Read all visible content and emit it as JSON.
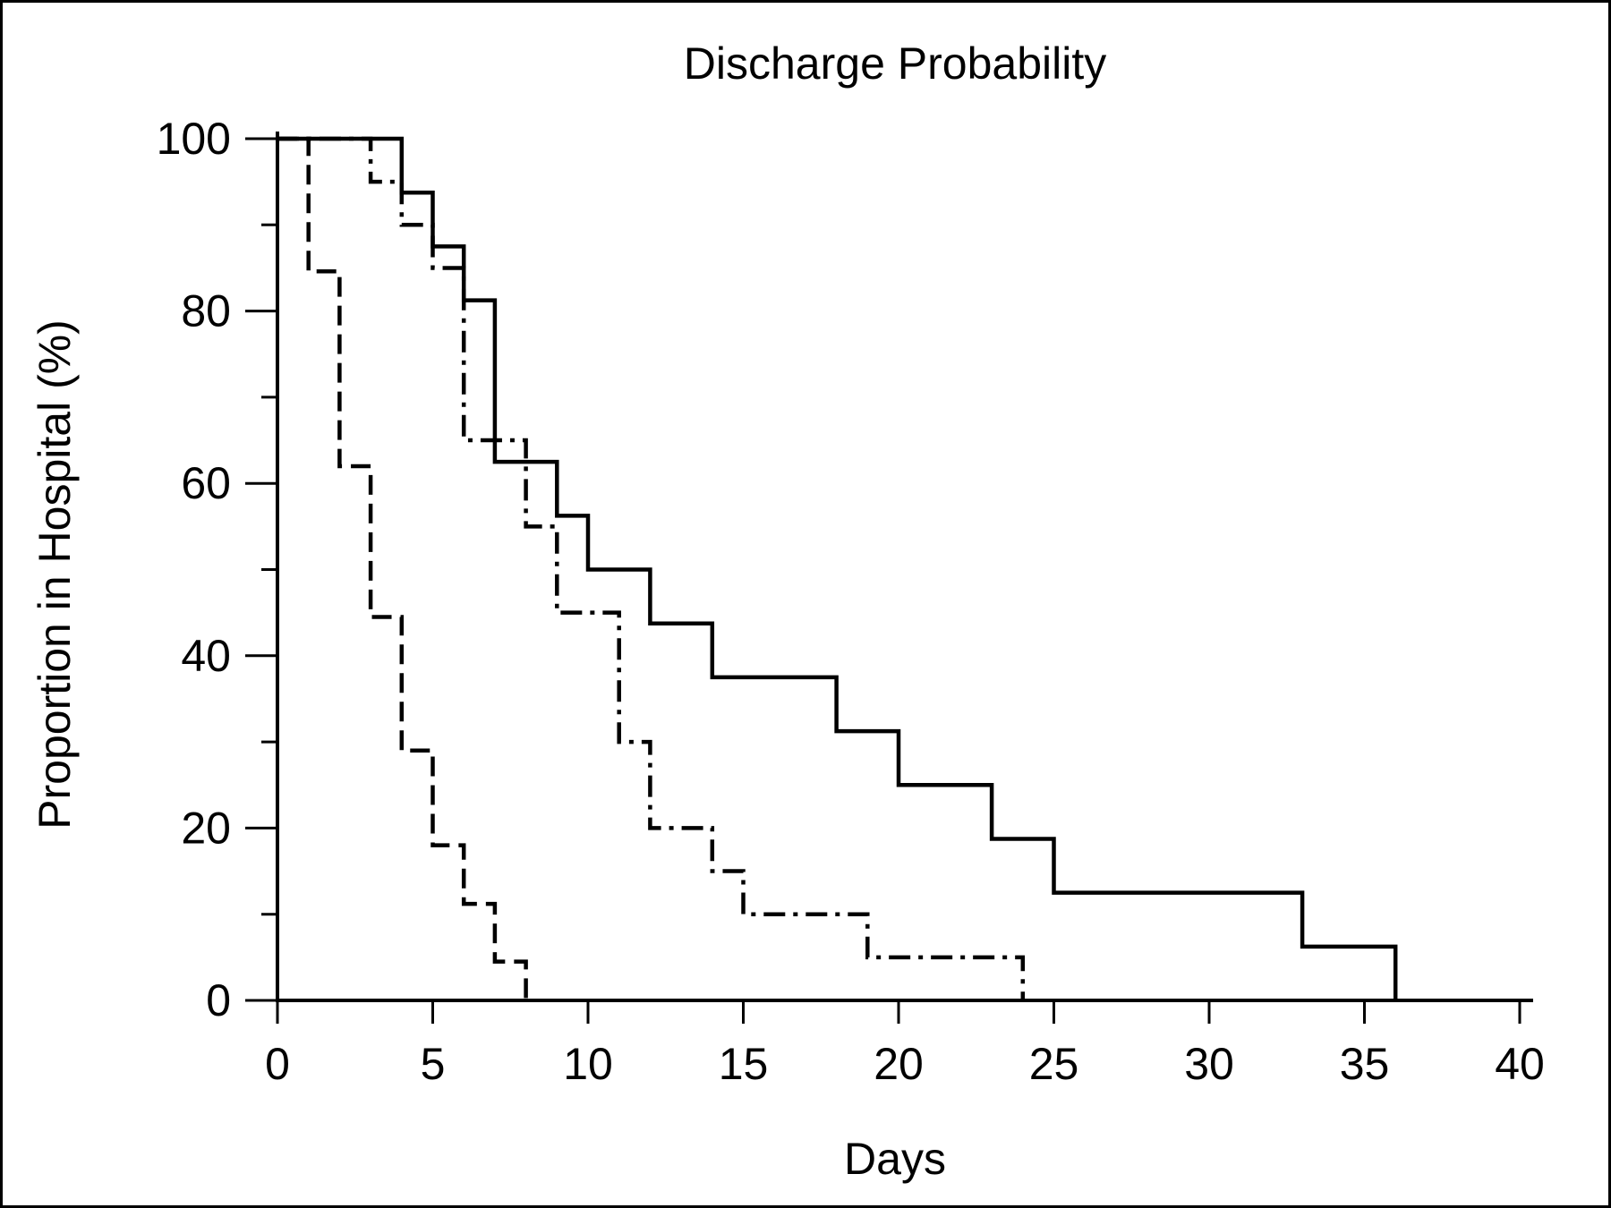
{
  "chart_data": {
    "type": "line",
    "step": true,
    "title": "Discharge Probability",
    "xlabel": "Days",
    "ylabel": "Proportion in Hospital (%)",
    "xlim": [
      0,
      40
    ],
    "ylim": [
      0,
      100
    ],
    "xticks": [
      0,
      5,
      10,
      15,
      20,
      25,
      30,
      35,
      40
    ],
    "xtick_labels": [
      "0",
      "5",
      "10",
      "15",
      "20",
      "25",
      "30",
      "35",
      "40"
    ],
    "yticks": [
      0,
      20,
      40,
      60,
      80,
      100
    ],
    "ytick_labels": [
      "0",
      "20",
      "40",
      "60",
      "80",
      "100"
    ],
    "yminor_ticks": [
      10,
      30,
      50,
      70,
      90
    ],
    "grid": false,
    "legend": "none",
    "series": [
      {
        "line_style": "solid",
        "x": [
          0,
          4,
          5,
          6,
          7,
          9,
          10,
          12,
          14,
          18,
          20,
          23,
          25,
          33,
          36
        ],
        "y": [
          100,
          93.75,
          87.5,
          81.25,
          62.5,
          56.25,
          50,
          43.75,
          37.5,
          31.25,
          25,
          18.75,
          12.5,
          6.25,
          0
        ]
      },
      {
        "line_style": "dash-dot",
        "x": [
          0,
          3,
          4,
          5,
          6,
          8,
          9,
          11,
          12,
          14,
          15,
          19,
          24
        ],
        "y": [
          100,
          95,
          90,
          85,
          65,
          55,
          45,
          30,
          20,
          15,
          10,
          5,
          0
        ]
      },
      {
        "line_style": "dashed",
        "x": [
          0,
          1,
          2,
          3,
          4,
          5,
          6,
          7,
          8
        ],
        "y": [
          100,
          84.6,
          62,
          44.5,
          29,
          18,
          11.2,
          4.5,
          0
        ]
      }
    ]
  }
}
